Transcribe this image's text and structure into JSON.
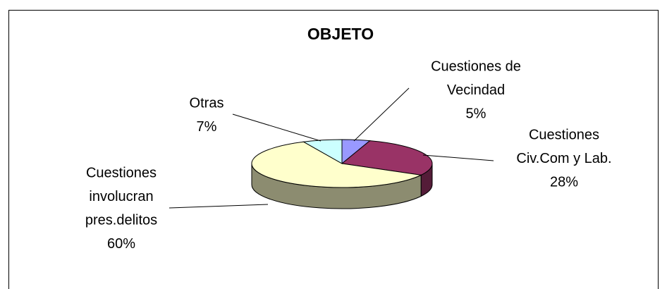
{
  "chart_data": {
    "type": "pie3d",
    "title": "OBJETO",
    "categories": [
      [
        "Cuestiones de",
        "Vecindad"
      ],
      [
        "Cuestiones",
        "Civ.Com y Lab."
      ],
      [
        "Cuestiones",
        "involucran",
        "pres.delitos"
      ],
      [
        "Otras"
      ]
    ],
    "values": [
      5,
      28,
      60,
      7
    ],
    "value_labels": [
      "5%",
      "28%",
      "60%",
      "7%"
    ],
    "colors": [
      "#9999ff",
      "#993366",
      "#ffffcc",
      "#ccffff"
    ]
  }
}
